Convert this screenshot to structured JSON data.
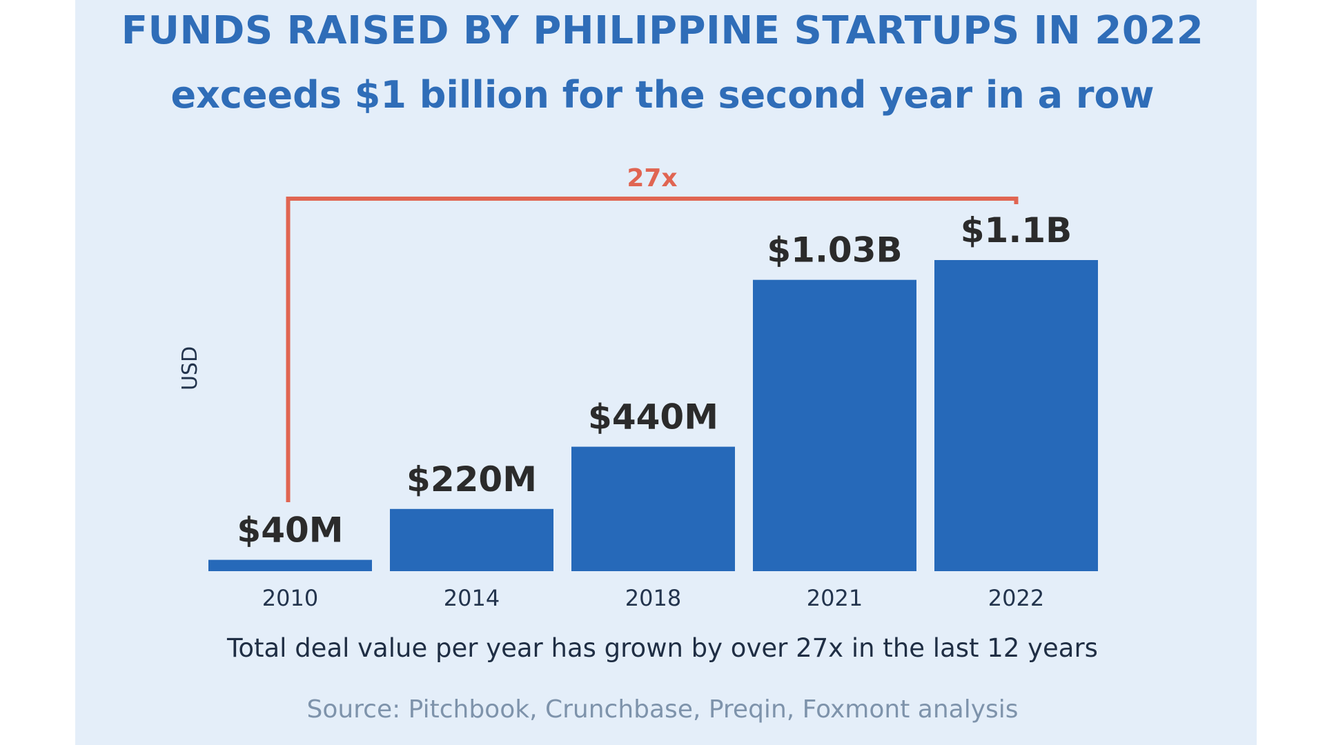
{
  "chart_data": {
    "type": "bar",
    "title": "FUNDS RAISED BY PHILIPPINE STARTUPS IN 2022",
    "subtitle": "exceeds $1 billion for the second year in a row",
    "ylabel": "USD",
    "xlabel": "",
    "categories": [
      "2010",
      "2014",
      "2018",
      "2021",
      "2022"
    ],
    "values": [
      40,
      220,
      440,
      1030,
      1100
    ],
    "value_units": "millions USD",
    "data_labels": [
      "$40M",
      "$220M",
      "$440M",
      "$1.03B",
      "$1.1B"
    ],
    "ylim": [
      0,
      1100
    ],
    "grid": false,
    "annotation": {
      "text": "27x",
      "from_category": "2010",
      "to_category": "2022"
    },
    "caption": "Total deal value per year has grown by over 27x in the last 12 years",
    "source": "Source: Pitchbook, Crunchbase, Preqin, Foxmont analysis"
  },
  "colors": {
    "bar": "#2669b9",
    "title": "#2f6db8",
    "annotation": "#e06552",
    "background": "#e4eef9"
  }
}
